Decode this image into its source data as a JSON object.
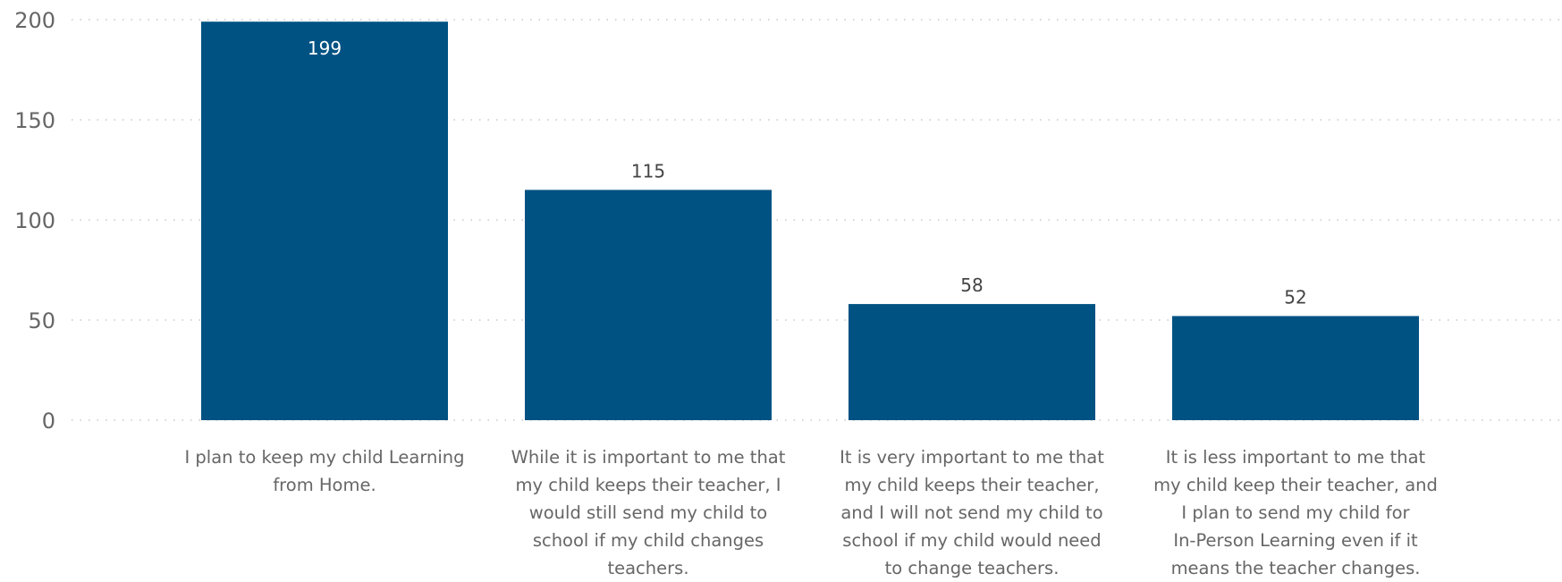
{
  "chart_data": {
    "type": "bar",
    "categories": [
      "I plan to keep my child Learning from Home.",
      "While it is important to me that my child keeps their teacher, I would still send my child to school if my child changes teachers.",
      "It is very important to me that my child keeps their teacher, and I will not send my child to school if my child would need to change teachers.",
      "It is less important to me that my child keep their teacher, and I plan to send my child for In-Person Learning even if it means the teacher changes."
    ],
    "category_lines": [
      [
        "I plan to keep my child Learning",
        "from Home."
      ],
      [
        "While it is important to me that",
        "my child keeps their teacher, I",
        "would still send my child to",
        "school if my child changes",
        "teachers."
      ],
      [
        "It is very important to me that",
        "my child keeps their teacher,",
        "and I will not send my child to",
        "school if my child would need",
        "to change teachers."
      ],
      [
        "It is less important to me that",
        "my child keep their teacher, and",
        "I plan to send my child for",
        "In-Person Learning even if it",
        "means the teacher changes."
      ]
    ],
    "values": [
      199,
      115,
      58,
      52
    ],
    "ylim": [
      0,
      200
    ],
    "yticks": [
      0,
      50,
      100,
      150,
      200
    ],
    "grid": true,
    "colors": {
      "bar": "#005283",
      "grid": "#c8c8c8",
      "tick_label": "#666666",
      "inside_label": "#ffffff",
      "outside_label": "#444444"
    }
  }
}
